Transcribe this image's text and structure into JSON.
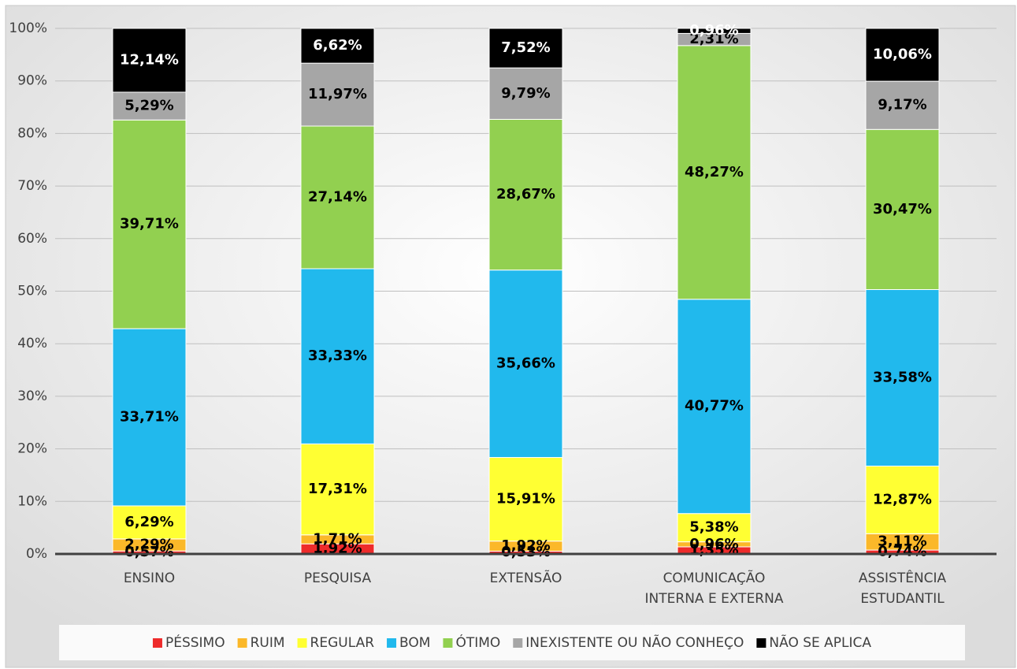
{
  "chart_data": {
    "type": "stacked_bar",
    "categories": [
      "ENSINO",
      "PESQUISA",
      "EXTENSÃO",
      "COMUNICAÇÃO\nINTERNA E EXTERNA",
      "ASSISTÊNCIA\nESTUDANTIL"
    ],
    "series": [
      {
        "name": "PÉSSIMO",
        "color": "#ee2b2b",
        "values": [
          0.57,
          1.92,
          0.53,
          1.35,
          0.74
        ],
        "value_labels": [
          "0,57%",
          "1,92%",
          "0,53%",
          "1,35%",
          "0,74%"
        ]
      },
      {
        "name": "RUIM",
        "color": "#fbb829",
        "values": [
          2.29,
          1.71,
          1.92,
          0.96,
          3.11
        ],
        "value_labels": [
          "2,29%",
          "1,71%",
          "1,92%",
          "0,96%",
          "3,11%"
        ]
      },
      {
        "name": "REGULAR",
        "color": "#ffff33",
        "values": [
          6.29,
          17.31,
          15.91,
          5.38,
          12.87
        ],
        "value_labels": [
          "6,29%",
          "17,31%",
          "15,91%",
          "5,38%",
          "12,87%"
        ]
      },
      {
        "name": "BOM",
        "color": "#21b9ed",
        "values": [
          33.71,
          33.33,
          35.66,
          40.77,
          33.58
        ],
        "value_labels": [
          "33,71%",
          "33,33%",
          "35,66%",
          "40,77%",
          "33,58%"
        ]
      },
      {
        "name": "ÓTIMO",
        "color": "#92d050",
        "values": [
          39.71,
          27.14,
          28.67,
          48.27,
          30.47
        ],
        "value_labels": [
          "39,71%",
          "27,14%",
          "28,67%",
          "48,27%",
          "30,47%"
        ]
      },
      {
        "name": "INEXISTENTE OU NÃO CONHEÇO",
        "color": "#a6a6a6",
        "values": [
          5.29,
          11.97,
          9.79,
          2.31,
          9.17
        ],
        "value_labels": [
          "5,29%",
          "11,97%",
          "9,79%",
          "2,31%",
          "9,17%"
        ]
      },
      {
        "name": "NÃO SE APLICA",
        "color": "#000000",
        "values": [
          12.14,
          6.62,
          7.52,
          0.96,
          10.06
        ],
        "value_labels": [
          "12,14%",
          "6,62%",
          "7,52%",
          "0,96%",
          "10,06%"
        ]
      }
    ],
    "ylim": [
      0,
      100
    ],
    "yticks": [
      {
        "value": 0,
        "label": "0%"
      },
      {
        "value": 10,
        "label": "10%"
      },
      {
        "value": 20,
        "label": "20%"
      },
      {
        "value": 30,
        "label": "30%"
      },
      {
        "value": 40,
        "label": "40%"
      },
      {
        "value": 50,
        "label": "50%"
      },
      {
        "value": 60,
        "label": "60%"
      },
      {
        "value": 70,
        "label": "70%"
      },
      {
        "value": 80,
        "label": "80%"
      },
      {
        "value": 90,
        "label": "90%"
      },
      {
        "value": 100,
        "label": "100%"
      }
    ],
    "grid": true,
    "legend": "bottom"
  }
}
